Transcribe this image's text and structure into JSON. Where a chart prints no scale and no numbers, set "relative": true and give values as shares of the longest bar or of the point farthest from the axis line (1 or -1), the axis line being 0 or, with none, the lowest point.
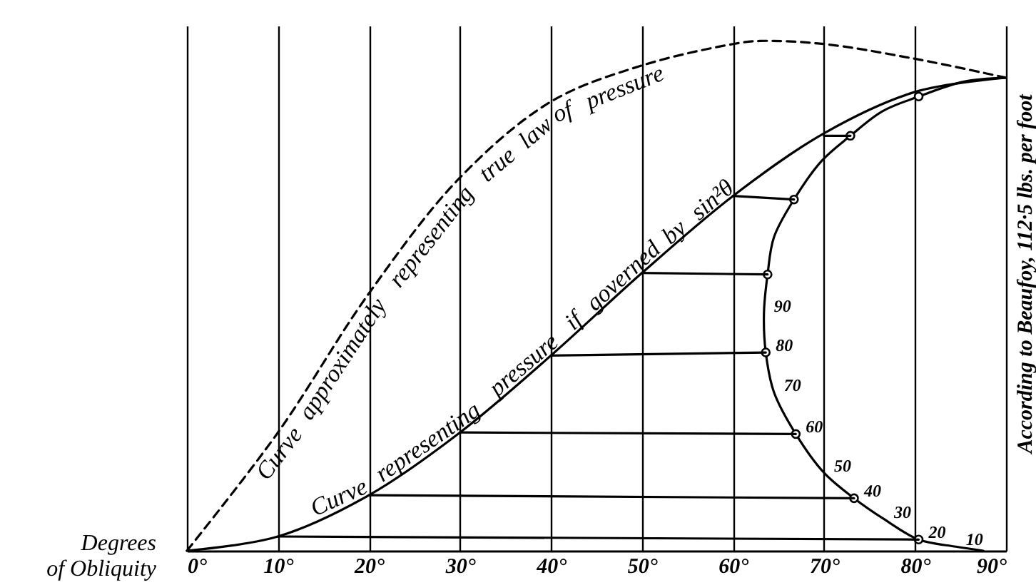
{
  "chart_data": {
    "type": "line",
    "relative": true,
    "xlabel": "Degrees of Obliquity",
    "xlim": [
      0,
      90
    ],
    "xticks": [
      {
        "value": 0,
        "label": "0°"
      },
      {
        "value": 10,
        "label": "10°"
      },
      {
        "value": 20,
        "label": "20°"
      },
      {
        "value": 30,
        "label": "30°"
      },
      {
        "value": 40,
        "label": "40°"
      },
      {
        "value": 50,
        "label": "50°"
      },
      {
        "value": 60,
        "label": "60°"
      },
      {
        "value": 70,
        "label": "70°"
      },
      {
        "value": 80,
        "label": "80°"
      },
      {
        "value": 90,
        "label": "90°"
      }
    ],
    "grid": "x",
    "x": [
      0,
      10,
      20,
      30,
      40,
      50,
      60,
      70,
      80,
      90
    ],
    "series": [
      {
        "name": "Curve representing pressure if governed by sin²θ",
        "color": "#000000",
        "values": [
          0,
          0.028,
          0.109,
          0.232,
          0.383,
          0.545,
          0.696,
          0.819,
          0.9,
          0.928
        ]
      },
      {
        "name": "Curve approximately representing true law of pressure",
        "color": "#000000",
        "line_style": "dashed",
        "x": [
          0,
          10,
          20,
          30,
          40,
          50,
          60,
          63,
          70,
          80,
          90
        ],
        "values": [
          0,
          0.232,
          0.505,
          0.732,
          0.881,
          0.952,
          0.994,
          1,
          0.994,
          0.965,
          0.928
        ]
      },
      {
        "color": "#000000",
        "x": [
          87.5,
          84.5,
          80.4,
          76.6,
          73.3,
          70,
          66.9,
          64.5,
          63.6,
          63.4,
          63.8,
          64.5,
          66.7,
          69.7,
          72.9,
          76.4,
          80.4,
          85.3,
          90
        ],
        "values": [
          0,
          0.008,
          0.022,
          0.062,
          0.103,
          0.153,
          0.229,
          0.311,
          0.389,
          0.466,
          0.542,
          0.615,
          0.689,
          0.764,
          0.814,
          0.862,
          0.891,
          0.92,
          0.928
        ]
      },
      {
        "type": "scatter",
        "marker": "circle",
        "color": "#000000",
        "x": [
          80.4,
          73.3,
          66.9,
          63.6,
          63.8,
          66.7,
          72.9,
          80.4
        ],
        "values": [
          0.022,
          0.103,
          0.229,
          0.389,
          0.542,
          0.689,
          0.814,
          0.891
        ]
      },
      {
        "color": "#000000",
        "x": [
          10,
          80.4
        ],
        "values": [
          0.028,
          0.022
        ]
      },
      {
        "color": "#000000",
        "x": [
          20,
          73.3
        ],
        "values": [
          0.109,
          0.103
        ]
      },
      {
        "color": "#000000",
        "x": [
          30,
          66.9
        ],
        "values": [
          0.232,
          0.229
        ]
      },
      {
        "color": "#000000",
        "x": [
          40,
          63.6
        ],
        "values": [
          0.383,
          0.389
        ]
      },
      {
        "color": "#000000",
        "x": [
          50,
          63.8
        ],
        "values": [
          0.545,
          0.542
        ]
      },
      {
        "color": "#000000",
        "x": [
          60,
          66.7
        ],
        "values": [
          0.696,
          0.689
        ]
      },
      {
        "color": "#000000",
        "x": [
          70,
          72.9
        ],
        "values": [
          0.814,
          0.814
        ]
      }
    ],
    "annotations": [
      {
        "text": "10",
        "x": 84.5,
        "y": 0.008
      },
      {
        "text": "20",
        "x": 80.4,
        "y": 0.022
      },
      {
        "text": "30",
        "x": 76.6,
        "y": 0.062
      },
      {
        "text": "40",
        "x": 73.3,
        "y": 0.103
      },
      {
        "text": "50",
        "x": 70,
        "y": 0.153
      },
      {
        "text": "60",
        "x": 66.9,
        "y": 0.229
      },
      {
        "text": "70",
        "x": 64.5,
        "y": 0.311
      },
      {
        "text": "80",
        "x": 63.6,
        "y": 0.389
      },
      {
        "text": "90",
        "x": 63.4,
        "y": 0.466
      },
      "According to Beaufoy, 112·5 lbs. per foot"
    ]
  }
}
